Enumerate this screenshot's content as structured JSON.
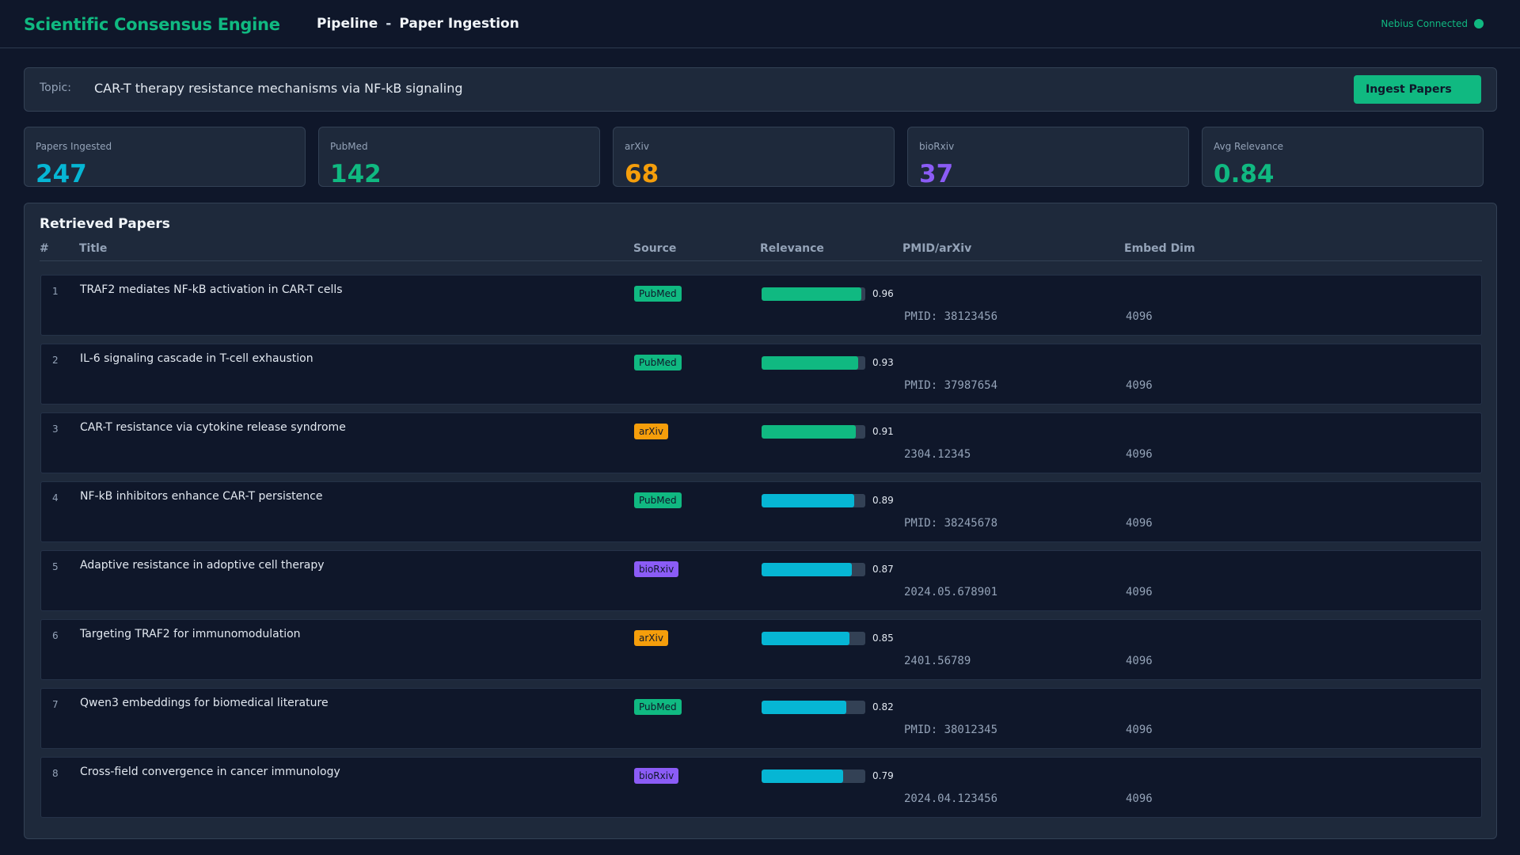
{
  "header": {
    "brand": "Scientific Consensus Engine",
    "crumb_1": "Pipeline",
    "crumb_sep": "-",
    "crumb_2": "Paper Ingestion",
    "status": "Nebius Connected",
    "status_color": "#10b981"
  },
  "topic": {
    "label": "Topic:",
    "value": "CAR-T therapy resistance mechanisms via NF-kB signaling",
    "button": "Ingest Papers"
  },
  "stats": [
    {
      "label": "Papers Ingested",
      "value": "247",
      "color": "#06b6d4"
    },
    {
      "label": "PubMed",
      "value": "142",
      "color": "#10b981"
    },
    {
      "label": "arXiv",
      "value": "68",
      "color": "#f59e0b"
    },
    {
      "label": "bioRxiv",
      "value": "37",
      "color": "#8b5cf6"
    },
    {
      "label": "Avg Relevance",
      "value": "0.84",
      "color": "#10b981"
    }
  ],
  "papers": {
    "title": "Retrieved Papers",
    "columns": {
      "num": "#",
      "title": "Title",
      "source": "Source",
      "relevance": "Relevance",
      "id": "PMID/arXiv",
      "dim": "Embed Dim"
    },
    "source_colors": {
      "PubMed": "#10b981",
      "arXiv": "#f59e0b",
      "bioRxiv": "#8b5cf6"
    },
    "rows": [
      {
        "num": "1",
        "title": "TRAF2 mediates NF-kB activation in CAR-T cells",
        "source": "PubMed",
        "relevance": "0.96",
        "fill_color": "#10b981",
        "id": "PMID: 38123456",
        "dim": "4096"
      },
      {
        "num": "2",
        "title": "IL-6 signaling cascade in T-cell exhaustion",
        "source": "PubMed",
        "relevance": "0.93",
        "fill_color": "#10b981",
        "id": "PMID: 37987654",
        "dim": "4096"
      },
      {
        "num": "3",
        "title": "CAR-T resistance via cytokine release syndrome",
        "source": "arXiv",
        "relevance": "0.91",
        "fill_color": "#10b981",
        "id": "2304.12345",
        "dim": "4096"
      },
      {
        "num": "4",
        "title": "NF-kB inhibitors enhance CAR-T persistence",
        "source": "PubMed",
        "relevance": "0.89",
        "fill_color": "#06b6d4",
        "id": "PMID: 38245678",
        "dim": "4096"
      },
      {
        "num": "5",
        "title": "Adaptive resistance in adoptive cell therapy",
        "source": "bioRxiv",
        "relevance": "0.87",
        "fill_color": "#06b6d4",
        "id": "2024.05.678901",
        "dim": "4096"
      },
      {
        "num": "6",
        "title": "Targeting TRAF2 for immunomodulation",
        "source": "arXiv",
        "relevance": "0.85",
        "fill_color": "#06b6d4",
        "id": "2401.56789",
        "dim": "4096"
      },
      {
        "num": "7",
        "title": "Qwen3 embeddings for biomedical literature",
        "source": "PubMed",
        "relevance": "0.82",
        "fill_color": "#06b6d4",
        "id": "PMID: 38012345",
        "dim": "4096"
      },
      {
        "num": "8",
        "title": "Cross-field convergence in cancer immunology",
        "source": "bioRxiv",
        "relevance": "0.79",
        "fill_color": "#06b6d4",
        "id": "2024.04.123456",
        "dim": "4096"
      }
    ]
  }
}
